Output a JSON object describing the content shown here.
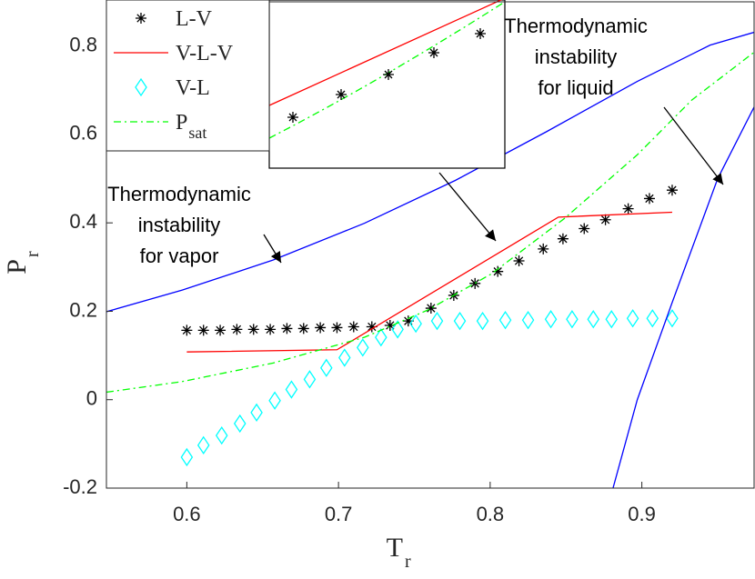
{
  "chart_data": {
    "type": "line",
    "xlabel": {
      "text": "T",
      "sub": "r"
    },
    "ylabel": {
      "text": "P",
      "sub": "r"
    },
    "xlim": [
      0.547,
      0.974
    ],
    "ylim": [
      -0.2,
      0.9
    ],
    "xticks": [
      0.6,
      0.7,
      0.8,
      0.9
    ],
    "yticks": [
      -0.2,
      0,
      0.2,
      0.4,
      0.6,
      0.8
    ],
    "grid": false,
    "legend": "top-left",
    "series": [
      {
        "name": "L-V",
        "color": "#000000",
        "marker": "star",
        "line": "none",
        "x": [
          0.6,
          0.611,
          0.622,
          0.633,
          0.644,
          0.655,
          0.666,
          0.677,
          0.688,
          0.699,
          0.71,
          0.722,
          0.734,
          0.746,
          0.761,
          0.776,
          0.79,
          0.805,
          0.819,
          0.835,
          0.848,
          0.862,
          0.876,
          0.891,
          0.905,
          0.92
        ],
        "values": [
          0.157,
          0.157,
          0.157,
          0.159,
          0.159,
          0.159,
          0.161,
          0.161,
          0.163,
          0.163,
          0.165,
          0.165,
          0.168,
          0.178,
          0.207,
          0.236,
          0.263,
          0.29,
          0.314,
          0.341,
          0.364,
          0.387,
          0.407,
          0.432,
          0.455,
          0.474
        ]
      },
      {
        "name": "V-L-V",
        "color": "#ff0000",
        "marker": "none",
        "line": "solid",
        "x": [
          0.6,
          0.699,
          0.845,
          0.92
        ],
        "values": [
          0.108,
          0.113,
          0.413,
          0.424
        ]
      },
      {
        "name": "V-L",
        "color": "#00ffff",
        "marker": "diamond",
        "line": "none",
        "x": [
          0.6,
          0.611,
          0.623,
          0.635,
          0.646,
          0.658,
          0.669,
          0.681,
          0.692,
          0.704,
          0.716,
          0.728,
          0.739,
          0.751,
          0.765,
          0.78,
          0.795,
          0.81,
          0.825,
          0.84,
          0.854,
          0.868,
          0.88,
          0.894,
          0.907,
          0.92
        ],
        "values": [
          -0.13,
          -0.103,
          -0.081,
          -0.054,
          -0.029,
          -0.002,
          0.023,
          0.046,
          0.072,
          0.095,
          0.118,
          0.141,
          0.159,
          0.172,
          0.178,
          0.178,
          0.178,
          0.18,
          0.18,
          0.182,
          0.182,
          0.182,
          0.182,
          0.184,
          0.184,
          0.184
        ]
      },
      {
        "name": "P",
        "subscript": "sat",
        "color": "#00ff00",
        "marker": "none",
        "line": "dashdot",
        "x": [
          0.547,
          0.597,
          0.657,
          0.717,
          0.759,
          0.801,
          0.849,
          0.897,
          0.933,
          0.974
        ],
        "values": [
          0.017,
          0.041,
          0.083,
          0.141,
          0.203,
          0.285,
          0.41,
          0.554,
          0.678,
          0.786
        ]
      },
      {
        "color": "#0000ff",
        "marker": "none",
        "line": "solid",
        "x": [
          0.547,
          0.597,
          0.657,
          0.717,
          0.777,
          0.837,
          0.897,
          0.945,
          0.974
        ],
        "values": [
          0.199,
          0.248,
          0.316,
          0.399,
          0.496,
          0.606,
          0.72,
          0.802,
          0.831
        ]
      },
      {
        "color": "#0000ff",
        "marker": "none",
        "line": "solid",
        "x": [
          0.881,
          0.897,
          0.92,
          0.95,
          0.974
        ],
        "values": [
          -0.2,
          0.0,
          0.22,
          0.5,
          0.662
        ]
      }
    ],
    "annotations": [
      {
        "lines": [
          "Thermodynamic",
          "instability",
          "for vapor"
        ]
      },
      {
        "lines": [
          "Thermodynamic",
          "instability",
          "for liquid"
        ]
      }
    ]
  }
}
